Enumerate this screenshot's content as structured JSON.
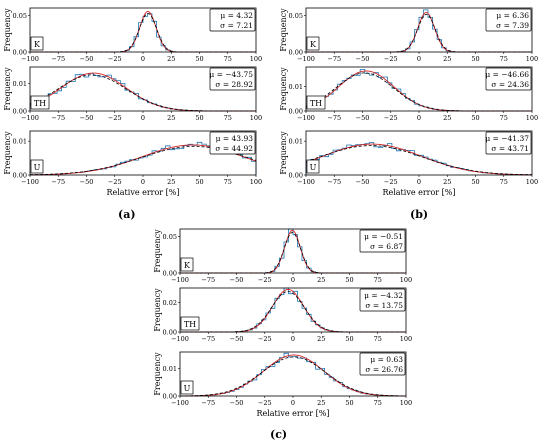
{
  "figure": {
    "panel_labels": [
      "(a)",
      "(b)",
      "(c)"
    ]
  },
  "colors": {
    "histogram": "#1f77b4",
    "fit_red": "#d62728",
    "fit_black": "#000000"
  },
  "chart_data": [
    {
      "type": "bar",
      "panel": "(a)",
      "xlabel": "Relative error [%]",
      "ylabel": "Frequency",
      "xlim": [
        -100,
        100
      ],
      "xticks": [
        -100,
        -75,
        -50,
        -25,
        0,
        25,
        50,
        75,
        100
      ],
      "subplots": [
        {
          "name": "K",
          "mu": 4.32,
          "sigma": 7.21,
          "mu_text": "μ = 4.32",
          "sigma_text": "σ = 7.21",
          "ylim": [
            0,
            0.06
          ],
          "yticks": [
            0,
            0.05
          ]
        },
        {
          "name": "TH",
          "mu": -43.75,
          "sigma": 28.92,
          "mu_text": "μ = −43.75",
          "sigma_text": "σ = 28.92",
          "ylim": [
            0,
            0.016
          ],
          "yticks": [
            0,
            0.01
          ]
        },
        {
          "name": "U",
          "mu": 43.93,
          "sigma": 44.92,
          "mu_text": "μ = 43.93",
          "sigma_text": "σ = 44.92",
          "ylim": [
            0,
            0.013
          ],
          "yticks": [
            0,
            0.01
          ]
        }
      ]
    },
    {
      "type": "bar",
      "panel": "(b)",
      "xlabel": "Relative error [%]",
      "ylabel": "Frequency",
      "xlim": [
        -100,
        100
      ],
      "xticks": [
        -100,
        -75,
        -50,
        -25,
        0,
        25,
        50,
        75,
        100
      ],
      "subplots": [
        {
          "name": "K",
          "mu": 6.36,
          "sigma": 7.39,
          "mu_text": "μ = 6.36",
          "sigma_text": "σ = 7.39",
          "ylim": [
            0,
            0.06
          ],
          "yticks": [
            0,
            0.05
          ]
        },
        {
          "name": "TH",
          "mu": -46.66,
          "sigma": 24.36,
          "mu_text": "μ = −46.66",
          "sigma_text": "σ = 24.36",
          "ylim": [
            0,
            0.018
          ],
          "yticks": [
            0,
            0.01
          ]
        },
        {
          "name": "U",
          "mu": -41.37,
          "sigma": 43.71,
          "mu_text": "μ = −41.37",
          "sigma_text": "σ = 43.71",
          "ylim": [
            0,
            0.013
          ],
          "yticks": [
            0,
            0.01
          ]
        }
      ]
    },
    {
      "type": "bar",
      "panel": "(c)",
      "xlabel": "Relative error [%]",
      "ylabel": "Frequency",
      "xlim": [
        -100,
        100
      ],
      "xticks": [
        -100,
        -75,
        -50,
        -25,
        0,
        25,
        50,
        75,
        100
      ],
      "subplots": [
        {
          "name": "K",
          "mu": -0.51,
          "sigma": 6.87,
          "mu_text": "μ = −0.51",
          "sigma_text": "σ = 6.87",
          "ylim": [
            0,
            0.06
          ],
          "yticks": [
            0,
            0.05
          ]
        },
        {
          "name": "TH",
          "mu": -4.32,
          "sigma": 13.75,
          "mu_text": "μ = −4.32",
          "sigma_text": "σ = 13.75",
          "ylim": [
            0,
            0.03
          ],
          "yticks": [
            0,
            0.02
          ]
        },
        {
          "name": "U",
          "mu": 0.63,
          "sigma": 26.76,
          "mu_text": "μ = 0.63",
          "sigma_text": "σ = 26.76",
          "ylim": [
            0,
            0.016
          ],
          "yticks": [
            0,
            0.01
          ]
        }
      ]
    }
  ]
}
